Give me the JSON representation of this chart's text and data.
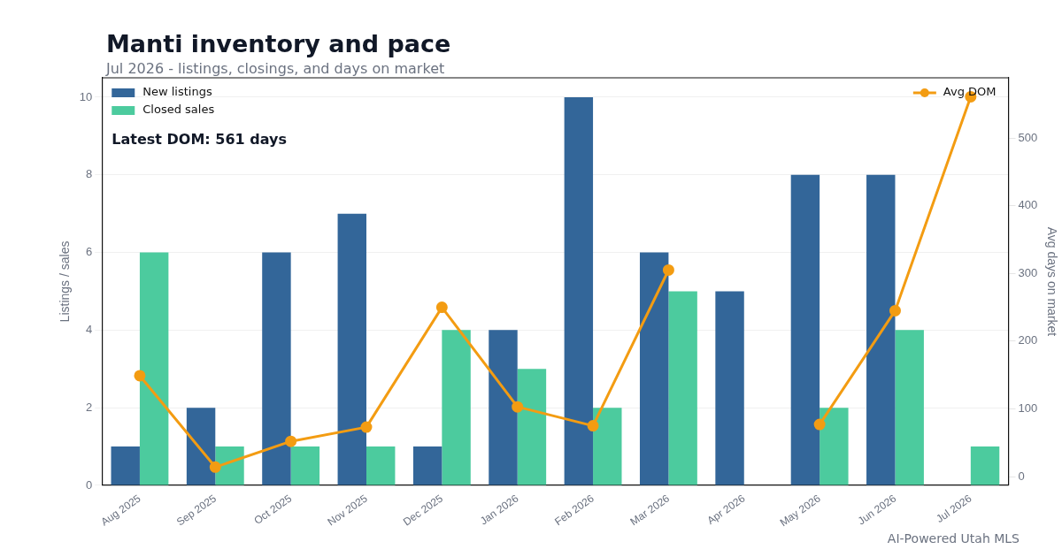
{
  "chart_data": {
    "type": "bar",
    "title": "Manti inventory and pace",
    "subtitle": "Jul 2026 - listings, closings, and days on market",
    "ylabel": "Listings / sales",
    "y2label": "Avg days on market",
    "categories": [
      "Aug 2025",
      "Sep 2025",
      "Oct 2025",
      "Nov 2025",
      "Dec 2025",
      "Jan 2026",
      "Feb 2026",
      "Mar 2026",
      "Apr 2026",
      "May 2026",
      "Jun 2026",
      "Jul 2026"
    ],
    "series": [
      {
        "name": "New listings",
        "color": "#336699",
        "values": [
          1,
          2,
          6,
          7,
          1,
          4,
          10,
          6,
          5,
          8,
          8,
          0
        ]
      },
      {
        "name": "Closed sales",
        "color": "#4ccb9e",
        "values": [
          6,
          1,
          1,
          1,
          4,
          3,
          2,
          5,
          0,
          2,
          4,
          1
        ]
      },
      {
        "name": "Avg DOM",
        "type": "line",
        "axis": "y2",
        "color": "#f39c12",
        "values": [
          149,
          14,
          52,
          73,
          250,
          103,
          75,
          305,
          null,
          77,
          245,
          561
        ]
      }
    ],
    "ylim": [
      0,
      10.5
    ],
    "yticks": [
      0,
      2,
      4,
      6,
      8,
      10
    ],
    "y2lim": [
      -13,
      589
    ],
    "y2ticks": [
      0,
      100,
      200,
      300,
      400,
      500
    ],
    "grid": "y",
    "legend": "top left",
    "marker": "circle",
    "annotations": [
      "Latest DOM: 561 days",
      "AI-Powered Utah MLS"
    ]
  }
}
